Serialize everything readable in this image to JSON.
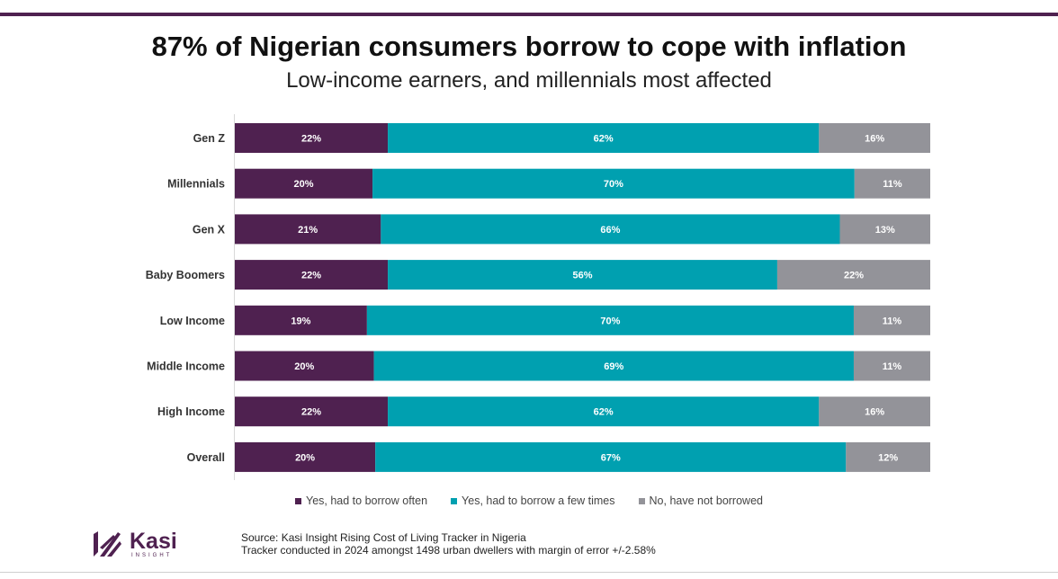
{
  "header": {
    "title": "87% of Nigerian consumers borrow to cope with inflation",
    "subtitle": "Low-income earners, and millennials most affected"
  },
  "colors": {
    "brand": "#4f2150",
    "series_often": "#4f2150",
    "series_few": "#00a0b0",
    "series_not": "#939399"
  },
  "chart_data": {
    "type": "bar",
    "orientation": "horizontal",
    "stacked": "100%",
    "categories": [
      "Gen Z",
      "Millennials",
      "Gen X",
      "Baby Boomers",
      "Low Income",
      "Middle Income",
      "High Income",
      "Overall"
    ],
    "series": [
      {
        "name": "Yes, had to borrow often",
        "values": [
          22,
          20,
          21,
          22,
          19,
          20,
          22,
          20
        ],
        "color": "#4f2150"
      },
      {
        "name": "Yes, had to borrow a few times",
        "values": [
          62,
          70,
          66,
          56,
          70,
          69,
          62,
          67
        ],
        "color": "#00a0b0"
      },
      {
        "name": "No, have not borrowed",
        "values": [
          16,
          11,
          13,
          22,
          11,
          11,
          16,
          12
        ],
        "color": "#939399"
      }
    ],
    "value_suffix": "%",
    "legend_position": "bottom",
    "grid": false
  },
  "logo": {
    "name": "Kasi",
    "tagline": "INSIGHT"
  },
  "footer": {
    "source_line": "Source: Kasi Insight Rising Cost of Living Tracker in Nigeria",
    "note_line": "Tracker conducted in 2024 amongst 1498 urban dwellers with margin of error +/-2.58%"
  }
}
